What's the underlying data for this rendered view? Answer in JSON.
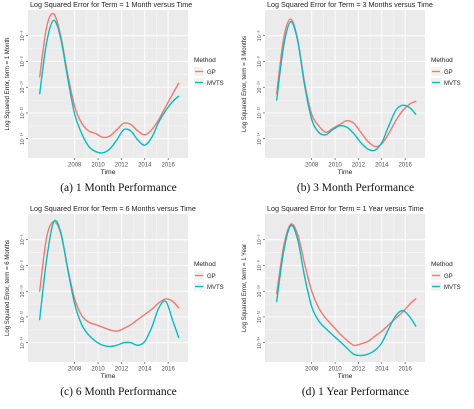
{
  "chart_data": [
    {
      "type": "line",
      "title": "Log Squared Error for Term = 1 Month versus Time",
      "xlabel": "Time",
      "ylabel": "Log Squared Error, term = 1 Month",
      "caption": "(a) 1 Month Performance",
      "xlim": [
        2004,
        2017.7
      ],
      "ylim": [
        -15.5,
        -4
      ],
      "x_ticks": [
        2008,
        2010,
        2012,
        2014,
        2016
      ],
      "x_tick_labels": [
        "2008",
        "2010",
        "2012",
        "2014",
        "2016"
      ],
      "y_ticks": [
        -14,
        -12,
        -10,
        -8,
        -6
      ],
      "y_tick_labels": [
        "10⁻¹⁴",
        "10⁻¹²",
        "10⁻¹⁰",
        "10⁻⁸",
        "10⁻⁶"
      ],
      "legend": {
        "title": "Method",
        "position": "right"
      },
      "series": [
        {
          "name": "GP",
          "color": "#F8766D",
          "x": [
            2005.0,
            2005.6,
            2006.2,
            2006.8,
            2007.4,
            2008.0,
            2008.6,
            2009.2,
            2009.8,
            2010.4,
            2011.0,
            2011.6,
            2012.2,
            2012.8,
            2013.4,
            2014.0,
            2014.6,
            2015.2,
            2015.8,
            2016.4,
            2016.9
          ],
          "y": [
            -9.2,
            -5.3,
            -4.3,
            -6.0,
            -9.0,
            -11.5,
            -12.8,
            -13.4,
            -13.6,
            -13.9,
            -13.8,
            -13.3,
            -12.8,
            -12.9,
            -13.4,
            -13.7,
            -13.3,
            -12.5,
            -11.5,
            -10.5,
            -9.7
          ]
        },
        {
          "name": "MVTS",
          "color": "#00BFC4",
          "x": [
            2005.0,
            2005.6,
            2006.2,
            2006.8,
            2007.4,
            2008.0,
            2008.6,
            2009.2,
            2009.8,
            2010.4,
            2011.0,
            2011.6,
            2012.2,
            2012.8,
            2013.4,
            2014.0,
            2014.6,
            2015.2,
            2015.8,
            2016.4,
            2016.9
          ],
          "y": [
            -10.5,
            -6.5,
            -4.8,
            -6.2,
            -9.3,
            -12.1,
            -13.6,
            -14.6,
            -15.0,
            -15.1,
            -14.8,
            -14.1,
            -13.3,
            -13.4,
            -14.1,
            -14.5,
            -13.9,
            -12.7,
            -11.8,
            -11.1,
            -10.7
          ]
        }
      ]
    },
    {
      "type": "line",
      "title": "Log Squared Error for Term = 3 Months versus Time",
      "xlabel": "Time",
      "ylabel": "Log Squared Error, term = 3 Months",
      "caption": "(b) 3 Month Performance",
      "xlim": [
        2004,
        2017.7
      ],
      "ylim": [
        -15.5,
        -4
      ],
      "x_ticks": [
        2008,
        2010,
        2012,
        2014,
        2016
      ],
      "x_tick_labels": [
        "2008",
        "2010",
        "2012",
        "2014",
        "2016"
      ],
      "y_ticks": [
        -14,
        -12,
        -10,
        -8,
        -6
      ],
      "y_tick_labels": [
        "10⁻¹⁴",
        "10⁻¹²",
        "10⁻¹⁰",
        "10⁻⁸",
        "10⁻⁶"
      ],
      "legend": {
        "title": "Method",
        "position": "right"
      },
      "series": [
        {
          "name": "GP",
          "color": "#F8766D",
          "x": [
            2005.0,
            2005.6,
            2006.2,
            2006.8,
            2007.4,
            2008.0,
            2008.6,
            2009.2,
            2009.8,
            2010.4,
            2011.0,
            2011.6,
            2012.2,
            2012.8,
            2013.4,
            2014.0,
            2014.6,
            2015.2,
            2015.8,
            2016.4,
            2016.9
          ],
          "y": [
            -10.5,
            -6.2,
            -4.7,
            -6.3,
            -9.7,
            -12.1,
            -13.0,
            -13.5,
            -13.2,
            -12.9,
            -12.6,
            -12.8,
            -13.5,
            -14.2,
            -14.6,
            -14.4,
            -13.6,
            -12.6,
            -11.8,
            -11.3,
            -11.1
          ]
        },
        {
          "name": "MVTS",
          "color": "#00BFC4",
          "x": [
            2005.0,
            2005.6,
            2006.2,
            2006.8,
            2007.4,
            2008.0,
            2008.6,
            2009.2,
            2009.8,
            2010.4,
            2011.0,
            2011.6,
            2012.2,
            2012.8,
            2013.4,
            2014.0,
            2014.6,
            2015.2,
            2015.8,
            2016.4,
            2016.9
          ],
          "y": [
            -11.0,
            -6.8,
            -4.9,
            -6.4,
            -9.9,
            -12.5,
            -13.5,
            -13.7,
            -13.3,
            -13.0,
            -13.1,
            -13.6,
            -14.3,
            -14.8,
            -14.9,
            -14.3,
            -13.0,
            -11.8,
            -11.4,
            -11.6,
            -12.1
          ]
        }
      ]
    },
    {
      "type": "line",
      "title": "Log Squared Error for Term = 6 Months versus Time",
      "xlabel": "Time",
      "ylabel": "Log Squared Error, term = 6 Months",
      "caption": "(c) 6 Month Performance",
      "xlim": [
        2004,
        2017.7
      ],
      "ylim": [
        -15.5,
        -4
      ],
      "x_ticks": [
        2008,
        2010,
        2012,
        2014,
        2016
      ],
      "x_tick_labels": [
        "2008",
        "2010",
        "2012",
        "2014",
        "2016"
      ],
      "y_ticks": [
        -14,
        -12,
        -10,
        -8,
        -6
      ],
      "y_tick_labels": [
        "10⁻¹⁴",
        "10⁻¹²",
        "10⁻¹⁰",
        "10⁻⁸",
        "10⁻⁶"
      ],
      "legend": {
        "title": "Method",
        "position": "right"
      },
      "series": [
        {
          "name": "GP",
          "color": "#F8766D",
          "x": [
            2005.0,
            2005.6,
            2006.2,
            2006.8,
            2007.4,
            2008.0,
            2008.6,
            2009.2,
            2009.8,
            2010.4,
            2011.0,
            2011.6,
            2012.2,
            2012.8,
            2013.4,
            2014.0,
            2014.6,
            2015.2,
            2015.8,
            2016.4,
            2016.9
          ],
          "y": [
            -10.0,
            -5.8,
            -4.6,
            -5.5,
            -8.2,
            -10.6,
            -11.9,
            -12.4,
            -12.6,
            -12.8,
            -13.0,
            -13.1,
            -12.9,
            -12.6,
            -12.2,
            -11.8,
            -11.4,
            -10.9,
            -10.6,
            -10.8,
            -11.3
          ]
        },
        {
          "name": "MVTS",
          "color": "#00BFC4",
          "x": [
            2005.0,
            2005.6,
            2006.2,
            2006.8,
            2007.4,
            2008.0,
            2008.6,
            2009.2,
            2009.8,
            2010.4,
            2011.0,
            2011.6,
            2012.2,
            2012.8,
            2013.4,
            2014.0,
            2014.6,
            2015.2,
            2015.8,
            2016.4,
            2016.9
          ],
          "y": [
            -12.2,
            -7.5,
            -4.6,
            -5.4,
            -8.3,
            -11.0,
            -12.6,
            -13.4,
            -13.9,
            -14.2,
            -14.3,
            -14.2,
            -14.0,
            -14.0,
            -14.2,
            -13.9,
            -12.8,
            -11.3,
            -10.8,
            -12.3,
            -13.6
          ]
        }
      ]
    },
    {
      "type": "line",
      "title": "Log Squared Error for Term = 1 Year versus Time",
      "xlabel": "Time",
      "ylabel": "Log Squared Error, term = 1 Year",
      "caption": "(d) 1 Year Performance",
      "xlim": [
        2004,
        2017.7
      ],
      "ylim": [
        -15.5,
        -4
      ],
      "x_ticks": [
        2008,
        2010,
        2012,
        2014,
        2016
      ],
      "x_tick_labels": [
        "2008",
        "2010",
        "2012",
        "2014",
        "2016"
      ],
      "y_ticks": [
        -14,
        -12,
        -10,
        -8,
        -6
      ],
      "y_tick_labels": [
        "10⁻¹⁴",
        "10⁻¹²",
        "10⁻¹⁰",
        "10⁻⁸",
        "10⁻⁶"
      ],
      "legend": {
        "title": "Method",
        "position": "right"
      },
      "series": [
        {
          "name": "GP",
          "color": "#F8766D",
          "x": [
            2005.0,
            2005.6,
            2006.2,
            2006.8,
            2007.4,
            2008.0,
            2008.6,
            2009.2,
            2009.8,
            2010.4,
            2011.0,
            2011.6,
            2012.2,
            2012.8,
            2013.4,
            2014.0,
            2014.6,
            2015.2,
            2015.8,
            2016.4,
            2016.9
          ],
          "y": [
            -10.2,
            -6.5,
            -4.8,
            -5.6,
            -7.9,
            -10.0,
            -11.3,
            -12.1,
            -12.7,
            -13.3,
            -13.8,
            -14.2,
            -14.1,
            -13.9,
            -13.5,
            -13.1,
            -12.6,
            -12.1,
            -11.6,
            -11.0,
            -10.6
          ]
        },
        {
          "name": "MVTS",
          "color": "#00BFC4",
          "x": [
            2005.0,
            2005.6,
            2006.2,
            2006.8,
            2007.4,
            2008.0,
            2008.6,
            2009.2,
            2009.8,
            2010.4,
            2011.0,
            2011.6,
            2012.2,
            2012.8,
            2013.4,
            2014.0,
            2014.6,
            2015.2,
            2015.8,
            2016.4,
            2016.9
          ],
          "y": [
            -10.8,
            -6.9,
            -4.9,
            -6.0,
            -8.9,
            -11.2,
            -12.3,
            -12.9,
            -13.4,
            -13.9,
            -14.4,
            -14.9,
            -15.0,
            -14.9,
            -14.6,
            -14.0,
            -12.9,
            -11.9,
            -11.5,
            -12.0,
            -12.7
          ]
        }
      ]
    }
  ]
}
